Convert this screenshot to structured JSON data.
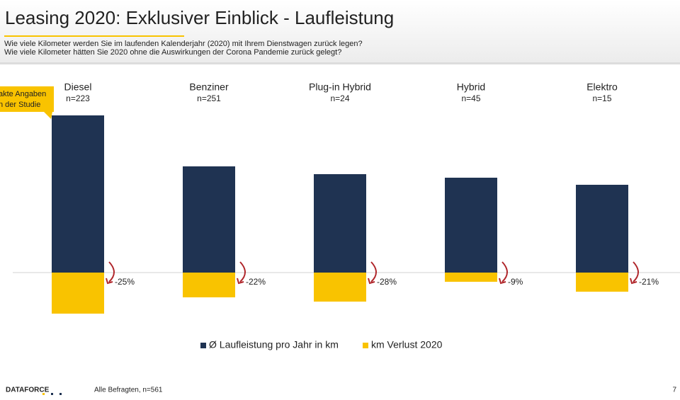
{
  "header": {
    "title": "Leasing 2020: Exklusiver Einblick - Laufleistung",
    "subtitle_lines": [
      "Wie viele Kilometer werden Sie im laufenden  Kalenderjahr (2020) mit Ihrem  Dienstwagen zurück legen?",
      "Wie viele Kilometer hätten  Sie 2020 ohne  die Auswirkungen  der Corona Pandemie zurück  gelegt?"
    ]
  },
  "callout": [
    "akte Angaben",
    "n der Studie"
  ],
  "chart_data": {
    "type": "bar",
    "categories": [
      "Diesel",
      "Benziner",
      "Plug-in Hybrid",
      "Hybrid",
      "Elektro"
    ],
    "sample_sizes": [
      "n=223",
      "n=251",
      "n=24",
      "n=45",
      "n=15"
    ],
    "series": [
      {
        "name": "Ø Laufleistung pro Jahr in km",
        "color": "#1f3352",
        "values": [
          222,
          150,
          139,
          134,
          124
        ]
      },
      {
        "name": "km Verlust 2020",
        "color": "#f9c300",
        "values": [
          -58,
          -35,
          -41,
          -13,
          -27
        ]
      }
    ],
    "change_pct": {
      "color": "#b0262b",
      "values": [
        -25,
        -22,
        -28,
        -9,
        -21
      ],
      "value_labels": [
        "-25%",
        "-22%",
        "-28%",
        "-9%",
        "-21%"
      ]
    },
    "ylim": [
      -60,
      230
    ]
  },
  "footer": {
    "logo": "DATAFORCE",
    "note": "Alle Befragten, n=561",
    "page": "7"
  }
}
